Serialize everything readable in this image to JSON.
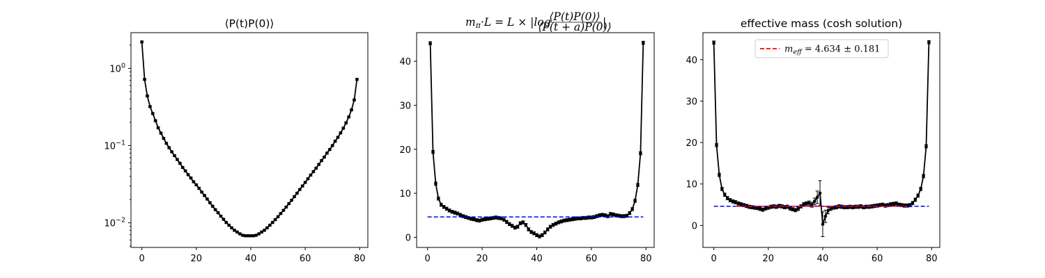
{
  "chart_data": [
    {
      "type": "line",
      "title": "⟨P(t)P(0)⟩",
      "yscale": "log",
      "xlim": [
        -4,
        83
      ],
      "ylim": [
        0.0048,
        2.9
      ],
      "x_ticks": [
        0,
        20,
        40,
        60,
        80
      ],
      "y_ticks": [
        {
          "value": 0.01,
          "base": "10",
          "exp": "−2"
        },
        {
          "value": 0.1,
          "base": "10",
          "exp": "−1"
        },
        {
          "value": 1,
          "base": "10",
          "exp": "0"
        }
      ],
      "series": [
        {
          "color": "#000000",
          "marker": "dot",
          "x": [
            0,
            1,
            2,
            3,
            4,
            5,
            6,
            7,
            8,
            9,
            10,
            11,
            12,
            13,
            14,
            15,
            16,
            17,
            18,
            19,
            20,
            21,
            22,
            23,
            24,
            25,
            26,
            27,
            28,
            29,
            30,
            31,
            32,
            33,
            34,
            35,
            36,
            37,
            38,
            39,
            40,
            41,
            42,
            43,
            44,
            45,
            46,
            47,
            48,
            49,
            50,
            51,
            52,
            53,
            54,
            55,
            56,
            57,
            58,
            59,
            60,
            61,
            62,
            63,
            64,
            65,
            66,
            67,
            68,
            69,
            70,
            71,
            72,
            73,
            74,
            75,
            76,
            77,
            78,
            79
          ],
          "y": [
            2.2,
            0.72,
            0.44,
            0.32,
            0.26,
            0.21,
            0.17,
            0.145,
            0.124,
            0.107,
            0.094,
            0.083,
            0.074,
            0.066,
            0.059,
            0.052,
            0.047,
            0.042,
            0.038,
            0.034,
            0.031,
            0.028,
            0.025,
            0.0226,
            0.0203,
            0.0182,
            0.0164,
            0.0148,
            0.0135,
            0.0122,
            0.0111,
            0.0101,
            0.0093,
            0.0086,
            0.008,
            0.0076,
            0.0072,
            0.0069,
            0.0068,
            0.0068,
            0.0068,
            0.0068,
            0.0069,
            0.0072,
            0.0076,
            0.008,
            0.0086,
            0.0093,
            0.0101,
            0.011,
            0.012,
            0.0132,
            0.0145,
            0.016,
            0.0177,
            0.0196,
            0.0218,
            0.0242,
            0.027,
            0.03,
            0.0334,
            0.0372,
            0.0415,
            0.046,
            0.051,
            0.057,
            0.064,
            0.071,
            0.08,
            0.089,
            0.1,
            0.114,
            0.128,
            0.146,
            0.168,
            0.197,
            0.235,
            0.29,
            0.39,
            0.72
          ],
          "yerr": 0.03
        }
      ]
    },
    {
      "type": "line",
      "title_parts": {
        "prefix": "m",
        "sub": "π",
        "middle": "·L = L × |log",
        "numerator": "⟨P(t)P(0)⟩",
        "denominator": "⟨P(t + a)P(0)⟩",
        "suffix": "|"
      },
      "yscale": "linear",
      "xlim": [
        -4,
        83
      ],
      "ylim": [
        -2.3,
        46.5
      ],
      "x_ticks": [
        0,
        20,
        40,
        60,
        80
      ],
      "y_ticks": [
        0,
        10,
        20,
        30,
        40
      ],
      "series": [
        {
          "color": "#000000",
          "marker": "dot",
          "x": [
            1,
            2,
            3,
            4,
            5,
            6,
            7,
            8,
            9,
            10,
            11,
            12,
            13,
            14,
            15,
            16,
            17,
            18,
            19,
            20,
            21,
            22,
            23,
            24,
            25,
            26,
            27,
            28,
            29,
            30,
            31,
            32,
            33,
            34,
            35,
            36,
            37,
            38,
            39,
            40,
            41,
            42,
            43,
            44,
            45,
            46,
            47,
            48,
            49,
            50,
            51,
            52,
            53,
            54,
            55,
            56,
            57,
            58,
            59,
            60,
            61,
            62,
            63,
            64,
            65,
            66,
            67,
            68,
            69,
            70,
            71,
            72,
            73,
            74,
            75,
            76,
            77,
            78,
            79
          ],
          "y": [
            44.1,
            19.4,
            12.2,
            8.8,
            7.4,
            6.9,
            6.5,
            6.1,
            5.8,
            5.6,
            5.4,
            5.1,
            4.8,
            4.6,
            4.4,
            4.2,
            4.1,
            3.9,
            3.8,
            4.0,
            4.1,
            4.2,
            4.3,
            4.4,
            4.5,
            4.4,
            4.3,
            4.0,
            3.5,
            3.0,
            2.6,
            2.2,
            2.4,
            3.2,
            3.4,
            2.8,
            1.8,
            1.2,
            0.9,
            0.5,
            0.2,
            0.5,
            1.1,
            1.8,
            2.4,
            2.8,
            3.1,
            3.4,
            3.6,
            3.8,
            3.9,
            4.0,
            4.1,
            4.2,
            4.3,
            4.3,
            4.4,
            4.4,
            4.5,
            4.5,
            4.6,
            4.8,
            5.0,
            5.1,
            5.0,
            4.8,
            5.3,
            5.2,
            5.0,
            4.9,
            4.8,
            4.8,
            4.9,
            5.5,
            6.4,
            8.3,
            11.9,
            19.1,
            44.2
          ],
          "yerr": 0.35
        },
        {
          "color": "#0000ff",
          "style": "dashed",
          "x": [
            0,
            79
          ],
          "y": [
            4.634,
            4.634
          ]
        }
      ]
    },
    {
      "type": "line",
      "title": "effective mass (cosh solution)",
      "yscale": "linear",
      "xlim": [
        -4,
        83
      ],
      "ylim": [
        -5.3,
        46.5
      ],
      "x_ticks": [
        0,
        20,
        40,
        60,
        80
      ],
      "y_ticks": [
        0,
        10,
        20,
        30,
        40
      ],
      "legend": {
        "position": "top-center",
        "entries": [
          {
            "label_var": "m",
            "label_sub": "eff",
            "label_rest": " = 4.634 ± 0.181",
            "color": "#ff0000",
            "style": "dashed"
          }
        ]
      },
      "series": [
        {
          "color": "#000000",
          "marker": "dot",
          "x": [
            0,
            1,
            2,
            3,
            4,
            5,
            6,
            7,
            8,
            9,
            10,
            11,
            12,
            13,
            14,
            15,
            16,
            17,
            18,
            19,
            20,
            21,
            22,
            23,
            24,
            25,
            26,
            27,
            28,
            29,
            30,
            31,
            32,
            33,
            34,
            35,
            36,
            37,
            38,
            39,
            40,
            41,
            42,
            43,
            44,
            45,
            46,
            47,
            48,
            49,
            50,
            51,
            52,
            53,
            54,
            55,
            56,
            57,
            58,
            59,
            60,
            61,
            62,
            63,
            64,
            65,
            66,
            67,
            68,
            69,
            70,
            71,
            72,
            73,
            74,
            75,
            76,
            77,
            78,
            79
          ],
          "y": [
            44.1,
            19.4,
            12.2,
            8.8,
            7.4,
            6.6,
            6.1,
            5.8,
            5.6,
            5.3,
            5.1,
            4.9,
            4.7,
            4.5,
            4.4,
            4.3,
            4.2,
            4.0,
            3.8,
            4.1,
            4.3,
            4.5,
            4.6,
            4.5,
            4.7,
            4.6,
            4.4,
            4.5,
            4.1,
            3.9,
            3.7,
            4.0,
            4.6,
            5.1,
            5.3,
            5.4,
            5.0,
            5.8,
            6.8,
            7.8,
            0.3,
            2.2,
            3.6,
            4.1,
            4.3,
            4.4,
            4.6,
            4.5,
            4.4,
            4.4,
            4.5,
            4.4,
            4.5,
            4.5,
            4.6,
            4.4,
            4.5,
            4.5,
            4.6,
            4.7,
            4.8,
            4.9,
            5.0,
            4.8,
            4.9,
            5.1,
            5.2,
            5.3,
            5.0,
            4.9,
            4.8,
            4.8,
            4.9,
            5.4,
            6.2,
            7.2,
            8.8,
            11.9,
            19.1,
            44.2
          ],
          "yerr": [
            0.4,
            0.4,
            0.4,
            0.4,
            0.4,
            0.4,
            0.4,
            0.4,
            0.4,
            0.4,
            0.4,
            0.4,
            0.4,
            0.4,
            0.4,
            0.4,
            0.4,
            0.4,
            0.4,
            0.4,
            0.4,
            0.4,
            0.4,
            0.4,
            0.4,
            0.4,
            0.4,
            0.4,
            0.4,
            0.4,
            0.4,
            0.4,
            0.4,
            0.4,
            0.4,
            0.5,
            0.6,
            0.8,
            1.5,
            3.0,
            3.0,
            1.5,
            0.8,
            0.5,
            0.4,
            0.4,
            0.4,
            0.4,
            0.4,
            0.4,
            0.4,
            0.4,
            0.4,
            0.4,
            0.4,
            0.4,
            0.4,
            0.4,
            0.4,
            0.4,
            0.4,
            0.4,
            0.4,
            0.4,
            0.4,
            0.4,
            0.4,
            0.4,
            0.4,
            0.4,
            0.4,
            0.4,
            0.4,
            0.4,
            0.4,
            0.4,
            0.4,
            0.4,
            0.4,
            0.4
          ]
        },
        {
          "color": "#0000ff",
          "style": "dashed",
          "x": [
            0,
            79
          ],
          "y": [
            4.634,
            4.634
          ]
        },
        {
          "color": "#ff0000",
          "style": "dashed",
          "x": [
            8,
            71
          ],
          "y": [
            4.634,
            4.634
          ]
        }
      ]
    }
  ]
}
